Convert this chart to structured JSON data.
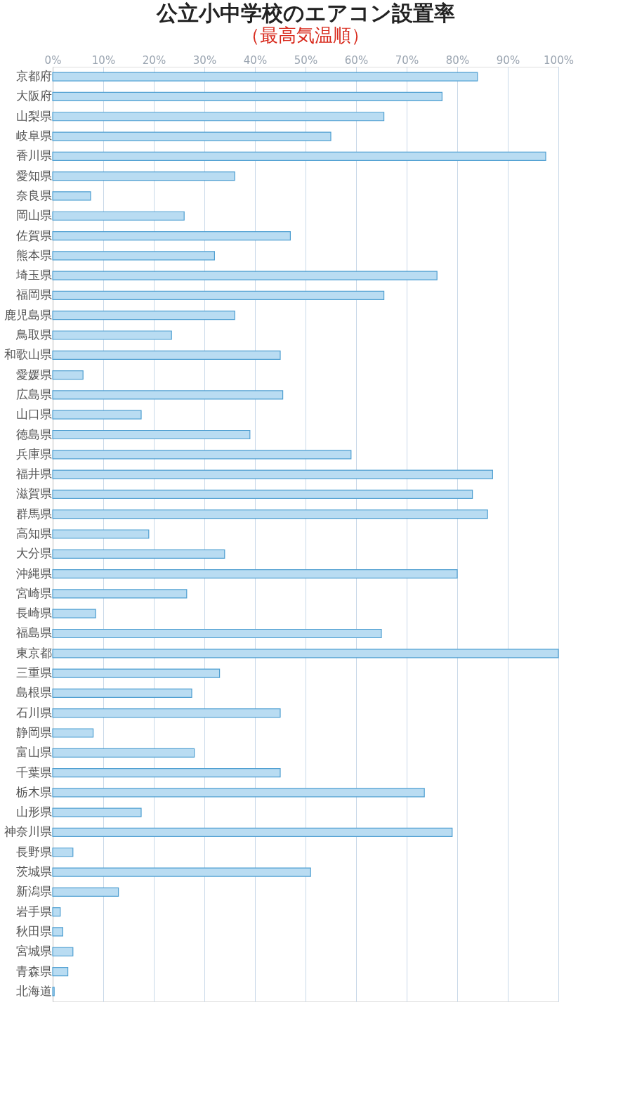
{
  "chart_data": {
    "type": "bar",
    "orientation": "horizontal",
    "title": "公立小中学校のエアコン設置率",
    "subtitle": "（最高気温順）",
    "categories": [
      "京都府",
      "大阪府",
      "山梨県",
      "岐阜県",
      "香川県",
      "愛知県",
      "奈良県",
      "岡山県",
      "佐賀県",
      "熊本県",
      "埼玉県",
      "福岡県",
      "鹿児島県",
      "鳥取県",
      "和歌山県",
      "愛媛県",
      "広島県",
      "山口県",
      "徳島県",
      "兵庫県",
      "福井県",
      "滋賀県",
      "群馬県",
      "高知県",
      "大分県",
      "沖縄県",
      "宮崎県",
      "長崎県",
      "福島県",
      "東京都",
      "三重県",
      "島根県",
      "石川県",
      "静岡県",
      "富山県",
      "千葉県",
      "栃木県",
      "山形県",
      "神奈川県",
      "長野県",
      "茨城県",
      "新潟県",
      "岩手県",
      "秋田県",
      "宮城県",
      "青森県",
      "北海道"
    ],
    "values": [
      84,
      77,
      65.5,
      55,
      97.5,
      36,
      7.5,
      26,
      47,
      32,
      76,
      65.5,
      36,
      23.5,
      45,
      6,
      45.5,
      17.5,
      39,
      59,
      87,
      83,
      86,
      19,
      34,
      80,
      26.5,
      8.5,
      65,
      100,
      33,
      27.5,
      45,
      8,
      28,
      45,
      73.5,
      17.5,
      79,
      4,
      51,
      13,
      1.5,
      2,
      4,
      3,
      0.3
    ],
    "color": "#b9dcf2",
    "xlim": [
      0,
      100
    ],
    "xticks": [
      {
        "value": 0,
        "label": "0%"
      },
      {
        "value": 10,
        "label": "10%"
      },
      {
        "value": 20,
        "label": "20%"
      },
      {
        "value": 30,
        "label": "30%"
      },
      {
        "value": 40,
        "label": "40%"
      },
      {
        "value": 50,
        "label": "50%"
      },
      {
        "value": 60,
        "label": "60%"
      },
      {
        "value": 70,
        "label": "70%"
      },
      {
        "value": 80,
        "label": "80%"
      },
      {
        "value": 90,
        "label": "90%"
      },
      {
        "value": 100,
        "label": "100%"
      }
    ],
    "grid": "x"
  }
}
